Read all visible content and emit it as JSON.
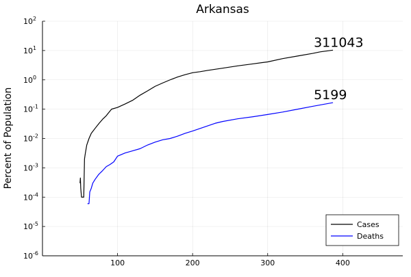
{
  "chart_data": {
    "type": "line",
    "title": "Arkansas",
    "xlabel": "",
    "ylabel": "Percent of Population",
    "xlim": [
      0,
      480
    ],
    "ylim": [
      1e-06,
      100
    ],
    "yscale": "log",
    "x_ticks": [
      100,
      200,
      300,
      400
    ],
    "y_ticks": [
      {
        "base": "10",
        "exp": "2",
        "value": 100
      },
      {
        "base": "10",
        "exp": "1",
        "value": 10
      },
      {
        "base": "10",
        "exp": "0",
        "value": 1
      },
      {
        "base": "10",
        "exp": "-1",
        "value": 0.1
      },
      {
        "base": "10",
        "exp": "-2",
        "value": 0.01
      },
      {
        "base": "10",
        "exp": "-3",
        "value": 0.001
      },
      {
        "base": "10",
        "exp": "-4",
        "value": 0.0001
      },
      {
        "base": "10",
        "exp": "-5",
        "value": 1e-05
      },
      {
        "base": "10",
        "exp": "-6",
        "value": 1e-06
      }
    ],
    "grid": true,
    "legend_position": "bottom-right",
    "series": [
      {
        "name": "Cases",
        "color": "#000000",
        "end_label": "311043",
        "points": [
          [
            50,
            0.0003
          ],
          [
            50.5,
            0.00045
          ],
          [
            51,
            0.0002
          ],
          [
            52,
            0.0001
          ],
          [
            55,
            0.0001
          ],
          [
            56,
            0.002
          ],
          [
            57,
            0.003
          ],
          [
            59,
            0.006
          ],
          [
            62,
            0.01
          ],
          [
            65,
            0.015
          ],
          [
            70,
            0.022
          ],
          [
            75,
            0.032
          ],
          [
            80,
            0.045
          ],
          [
            85,
            0.06
          ],
          [
            88,
            0.075
          ],
          [
            92,
            0.1
          ],
          [
            100,
            0.115
          ],
          [
            110,
            0.15
          ],
          [
            120,
            0.2
          ],
          [
            130,
            0.3
          ],
          [
            140,
            0.42
          ],
          [
            150,
            0.6
          ],
          [
            160,
            0.78
          ],
          [
            170,
            1.0
          ],
          [
            180,
            1.25
          ],
          [
            190,
            1.5
          ],
          [
            200,
            1.75
          ],
          [
            210,
            1.9
          ],
          [
            220,
            2.1
          ],
          [
            240,
            2.5
          ],
          [
            260,
            3.0
          ],
          [
            280,
            3.5
          ],
          [
            300,
            4.1
          ],
          [
            320,
            5.3
          ],
          [
            340,
            6.5
          ],
          [
            360,
            8.0
          ],
          [
            370,
            9.0
          ],
          [
            387,
            10.3
          ]
        ]
      },
      {
        "name": "Deaths",
        "color": "#0000ff",
        "end_label": "5199",
        "points": [
          [
            60,
            6e-05
          ],
          [
            62,
            6e-05
          ],
          [
            63,
            0.00015
          ],
          [
            65,
            0.0002
          ],
          [
            67,
            0.0003
          ],
          [
            70,
            0.0004
          ],
          [
            75,
            0.0006
          ],
          [
            80,
            0.0008
          ],
          [
            85,
            0.0011
          ],
          [
            90,
            0.0013
          ],
          [
            95,
            0.0016
          ],
          [
            100,
            0.0025
          ],
          [
            110,
            0.0032
          ],
          [
            120,
            0.0038
          ],
          [
            130,
            0.0045
          ],
          [
            140,
            0.006
          ],
          [
            150,
            0.0075
          ],
          [
            160,
            0.009
          ],
          [
            170,
            0.01
          ],
          [
            180,
            0.012
          ],
          [
            190,
            0.015
          ],
          [
            200,
            0.018
          ],
          [
            210,
            0.022
          ],
          [
            220,
            0.027
          ],
          [
            230,
            0.033
          ],
          [
            240,
            0.038
          ],
          [
            260,
            0.047
          ],
          [
            280,
            0.055
          ],
          [
            300,
            0.066
          ],
          [
            320,
            0.08
          ],
          [
            340,
            0.1
          ],
          [
            360,
            0.125
          ],
          [
            387,
            0.167
          ]
        ]
      }
    ]
  }
}
